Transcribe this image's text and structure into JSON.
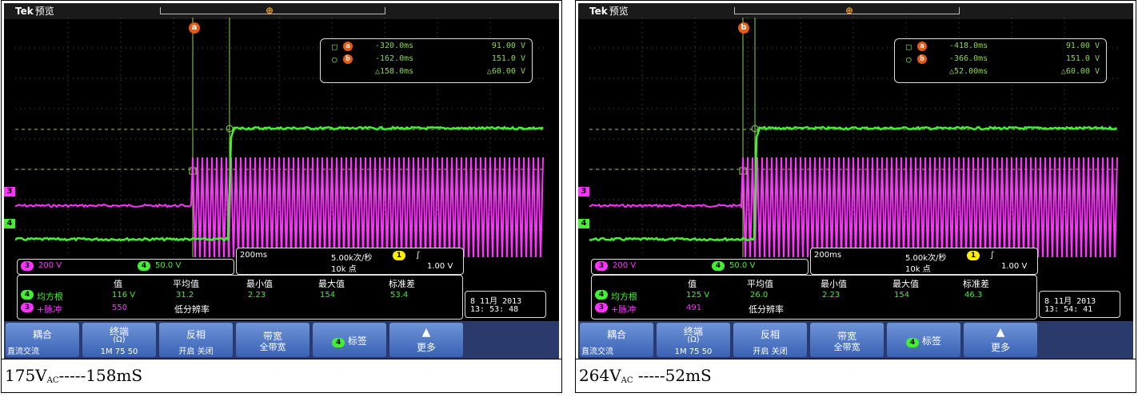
{
  "panels": [
    {
      "brand": "Tek",
      "mode": "预览",
      "cursor_labels": [
        "a"
      ],
      "cursor_table": {
        "a_time": "-320.0ms",
        "a_volt": "91.00 V",
        "b_time": "-162.0ms",
        "b_volt": "151.0 V",
        "delta_time": "△158.0ms",
        "delta_volt": "△60.00 V"
      },
      "channels": {
        "ch3_scale": "200 V",
        "ch4_scale": "50.0 V",
        "ch3_num": "3",
        "ch4_num": "4"
      },
      "acquisition": {
        "timebase": "200ms",
        "rate": "5.00k次/秒",
        "points": "10k 点",
        "trigger_ch": "1",
        "trigger_slope": "∫",
        "trigger_level": "1.00 V"
      },
      "measurements": {
        "headers": [
          "值",
          "平均值",
          "最小值",
          "最大值",
          "标准差"
        ],
        "row1_label": "均方根",
        "row1_values": [
          "116 V",
          "31.2",
          "2.23",
          "154",
          "53.4"
        ],
        "row2_label": "+脉冲",
        "row2_values": [
          "550",
          "低分辨率"
        ]
      },
      "datetime": {
        "date": "8 11月 2013",
        "time": "13: 53: 48"
      },
      "caption": {
        "voltage": "175V",
        "sub": "AC",
        "rest": "-----158mS"
      }
    },
    {
      "brand": "Tek",
      "mode": "预览",
      "cursor_labels": [
        "b"
      ],
      "cursor_table": {
        "a_time": "-418.0ms",
        "a_volt": "91.00 V",
        "b_time": "-366.0ms",
        "b_volt": "151.0 V",
        "delta_time": "△52.00ms",
        "delta_volt": "△60.00 V"
      },
      "channels": {
        "ch3_scale": "200 V",
        "ch4_scale": "50.0 V",
        "ch3_num": "3",
        "ch4_num": "4"
      },
      "acquisition": {
        "timebase": "200ms",
        "rate": "5.00k次/秒",
        "points": "10k 点",
        "trigger_ch": "1",
        "trigger_slope": "∫",
        "trigger_level": "1.00 V"
      },
      "measurements": {
        "headers": [
          "值",
          "平均值",
          "最小值",
          "最大值",
          "标准差"
        ],
        "row1_label": "均方根",
        "row1_values": [
          "125 V",
          "26.0",
          "2.23",
          "154",
          "46.3"
        ],
        "row2_label": "+脉冲",
        "row2_values": [
          "491",
          "低分辨率"
        ]
      },
      "datetime": {
        "date": "8 11月 2013",
        "time": "13: 54: 41"
      },
      "caption": {
        "voltage": "264V",
        "sub": "AC",
        "rest": " -----52mS"
      }
    }
  ],
  "menu": {
    "coupling": {
      "label": "耦合",
      "options": "直流交流"
    },
    "termination": {
      "label": "终端",
      "unit": "(Ω)",
      "options": [
        "1M",
        "75",
        "50"
      ]
    },
    "invert": {
      "label": "反相",
      "options": [
        "开启",
        "关闭"
      ]
    },
    "bandwidth": {
      "label": "带宽",
      "value": "全带宽"
    },
    "tag": {
      "label": "标签",
      "num": "4"
    },
    "more": {
      "label": "更多"
    }
  },
  "colors": {
    "ch3": "#ff33ff",
    "ch4": "#44ee33",
    "cursor": "#8ed64a",
    "bubble": "#e85a14"
  }
}
